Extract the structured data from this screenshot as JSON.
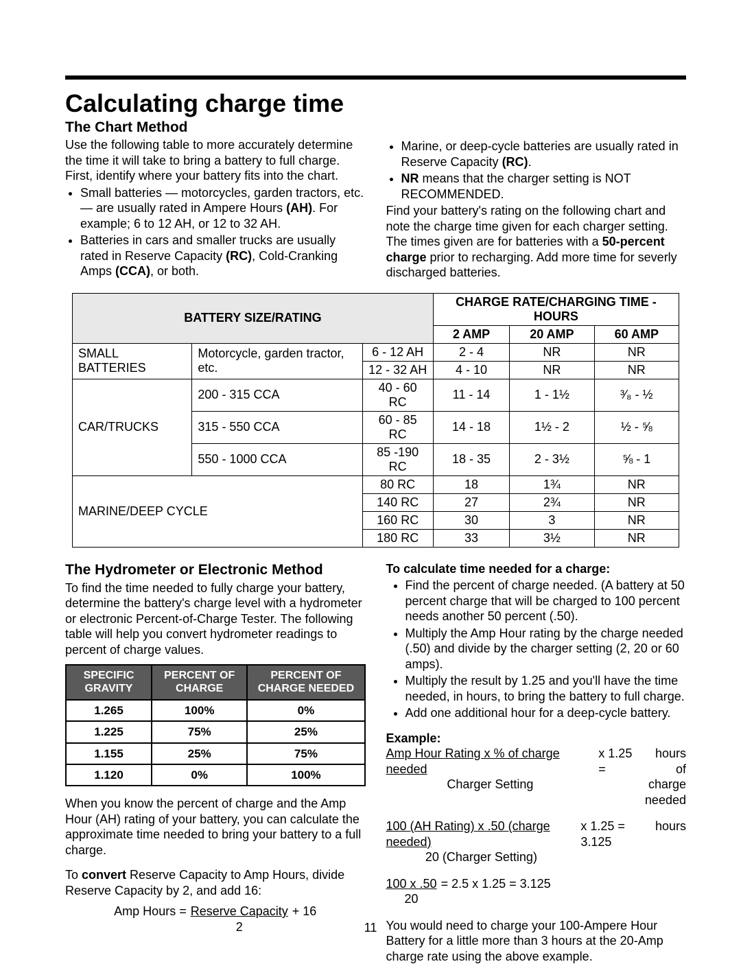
{
  "title": "Calculating charge time",
  "section1": {
    "heading": "The Chart Method",
    "p1": "Use the following table to more accurately determine the time it will take to bring a battery to full charge. First, identify where your battery fits into the chart.",
    "left_bullets": [
      "Small batteries — motorcycles, garden tractors, etc. — are usually rated in Ampere Hours (AH). For example; 6 to 12 AH, or 12 to 32 AH.",
      "Batteries in cars and smaller trucks are usually rated in Reserve Capacity (RC), Cold-Cranking Amps (CCA), or both."
    ],
    "right_bullets": [
      "Marine, or deep-cycle batteries are usually rated in Reserve Capacity (RC).",
      "NR means that the charger setting is NOT RECOMMENDED."
    ],
    "right_p": "Find your battery's rating on the following chart and note the charge time given for each charger setting. The times given are for batteries with a 50-percent charge prior to recharging. Add more time for severly discharged batteries."
  },
  "chart": {
    "hdr_left": "BATTERY SIZE/RATING",
    "hdr_right": "CHARGE RATE/CHARGING TIME - HOURS",
    "amp_cols": [
      "2 AMP",
      "20 AMP",
      "60 AMP"
    ],
    "rows": [
      {
        "cat": "SMALL BATTERIES",
        "cat_rs": 2,
        "desc": "Motorcycle, garden tractor, etc.",
        "desc_rs": 2,
        "range": "6 - 12 AH",
        "a2": "2 - 4",
        "a20": "NR",
        "a60": "NR"
      },
      {
        "range": "12 - 32 AH",
        "a2": "4 - 10",
        "a20": "NR",
        "a60": "NR"
      },
      {
        "cat": "CAR/TRUCKS",
        "cat_rs": 3,
        "desc": "200 - 315 CCA",
        "range": "40 - 60 RC",
        "a2": "11 - 14",
        "a20": "1 - 1½",
        "a60": "³⁄₈ - ½"
      },
      {
        "desc": "315 - 550 CCA",
        "range": "60 - 85 RC",
        "a2": "14 - 18",
        "a20": "1½ - 2",
        "a60": "½ - ⅝"
      },
      {
        "desc": "550 - 1000 CCA",
        "range": "85 -190 RC",
        "a2": "18 - 35",
        "a20": "2 - 3½",
        "a60": "⅝ - 1"
      },
      {
        "cat": "MARINE/DEEP CYCLE",
        "cat_rs": 4,
        "cat_cs": 2,
        "range": "80 RC",
        "a2": "18",
        "a20": "1¾",
        "a60": "NR"
      },
      {
        "range": "140 RC",
        "a2": "27",
        "a20": "2¾",
        "a60": "NR"
      },
      {
        "range": "160 RC",
        "a2": "30",
        "a20": "3",
        "a60": "NR"
      },
      {
        "range": "180 RC",
        "a2": "33",
        "a20": "3½",
        "a60": "NR"
      }
    ]
  },
  "section2": {
    "heading": "The Hydrometer or Electronic Method",
    "p1": "To find the time needed to fully charge your battery, determine the battery's charge level with a hydrometer or electronic Percent-of-Charge Tester. The following table will help you convert hydrometer readings to percent of charge values."
  },
  "hydro": {
    "cols": [
      "SPECIFIC GRAVITY",
      "PERCENT OF CHARGE",
      "PERCENT OF CHARGE NEEDED"
    ],
    "rows": [
      [
        "1.265",
        "100%",
        "0%"
      ],
      [
        "1.225",
        "75%",
        "25%"
      ],
      [
        "1.155",
        "25%",
        "75%"
      ],
      [
        "1.120",
        "0%",
        "100%"
      ]
    ]
  },
  "left_after": {
    "p1": "When you know the percent of charge and the Amp Hour (AH) rating of your battery, you can calculate the approximate time needed to bring your battery to a full charge.",
    "p2a": "To ",
    "p2b": "convert",
    "p2c": " Reserve Capacity to Amp Hours, divide Reserve Capacity by 2, and add 16:",
    "formula_lhs": "Amp Hours = ",
    "formula_top": "Reserve Capacity",
    "formula_bot": "2",
    "formula_tail": " + 16"
  },
  "right_col": {
    "h": "To calculate time needed for a charge:",
    "bullets": [
      "Find the percent of charge needed. (A battery at 50 percent charge that will be charged to 100 percent needs another 50 percent (.50).",
      "Multiply the Amp Hour rating by the charge needed (.50) and divide by the charger setting (2, 20 or 60 amps).",
      "Multiply the result by 1.25 and you'll have the time needed, in hours, to bring the battery to full charge.",
      "Add one additional hour for a deep-cycle battery."
    ],
    "ex_h": "Example:",
    "ex1_top": "Amp Hour Rating x % of charge needed",
    "ex1_bot": "Charger Setting",
    "ex1_tail_top": "x 1.25 = ",
    "ex1_right": [
      "hours",
      "of",
      "charge",
      "needed"
    ],
    "ex2_top": "100 (AH Rating)  x .50 (charge needed)",
    "ex2_bot": "20 (Charger Setting)",
    "ex2_tail": "x 1.25 =  3.125",
    "ex2_right": "hours",
    "ex3_top": "100 x .50",
    "ex3_bot": "20",
    "ex3_rest": " = 2.5 x 1.25 = 3.125",
    "p_final": "You would  need to charge your 100-Ampere Hour Battery for a little more than 3 hours at the 20-Amp charge rate using the above example."
  },
  "page_number": "11"
}
